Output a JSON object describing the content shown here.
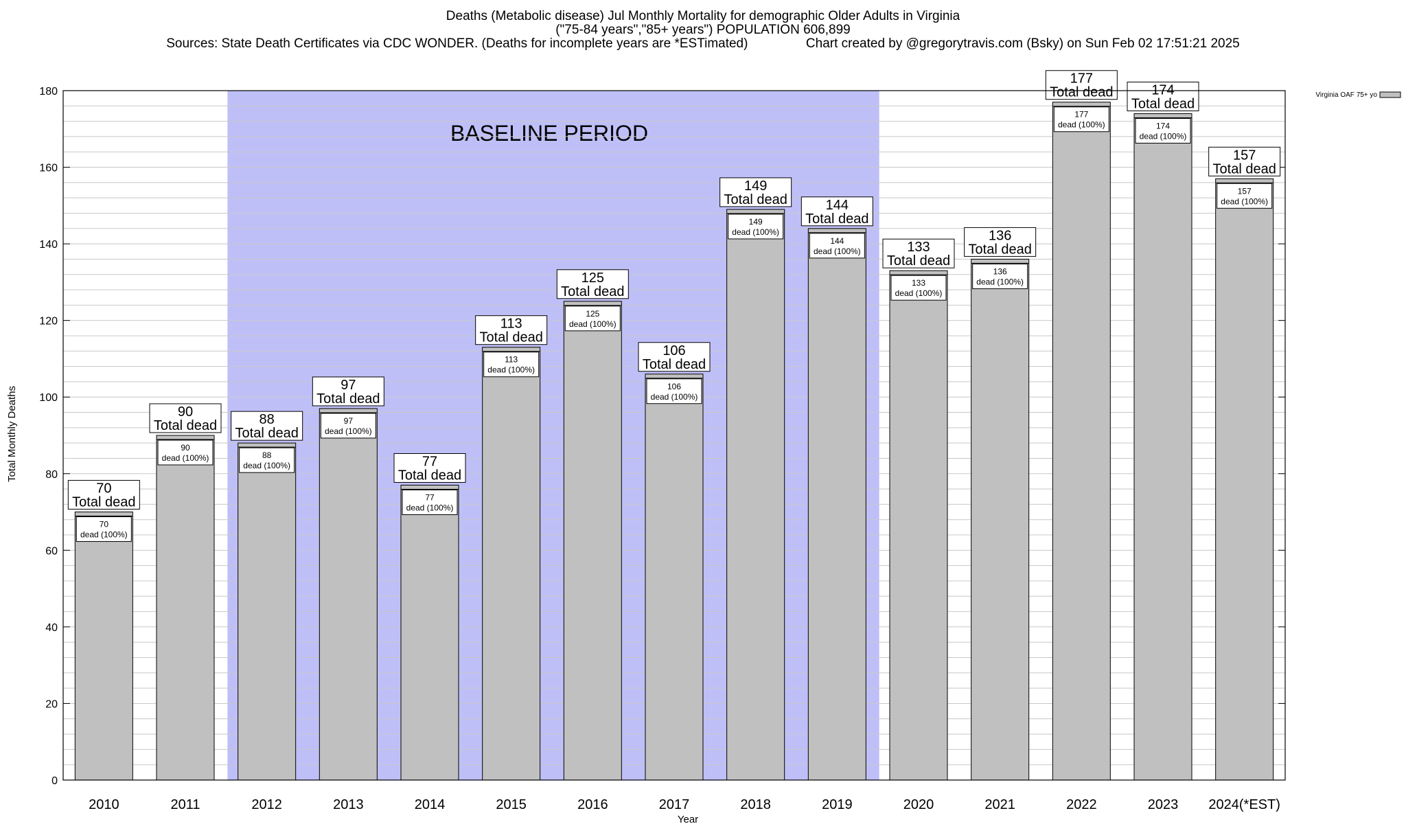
{
  "chart_data": {
    "type": "bar",
    "title_lines": [
      "Deaths (Metabolic disease) Jul Monthly Mortality for demographic Older Adults in Virginia",
      "(\"75-84 years\",\"85+ years\") POPULATION 606,899",
      "Sources: State Death Certificates via CDC WONDER. (Deaths for incomplete years are *ESTimated)                Chart created by @gregorytravis.com (Bsky) on Sun Feb 02 17:51:21 2025"
    ],
    "categories": [
      "2010",
      "2011",
      "2012",
      "2013",
      "2014",
      "2015",
      "2016",
      "2017",
      "2018",
      "2019",
      "2020",
      "2021",
      "2022",
      "2023",
      "2024(*EST)"
    ],
    "values": [
      70,
      90,
      88,
      97,
      77,
      113,
      125,
      106,
      149,
      144,
      133,
      136,
      177,
      174,
      157
    ],
    "total_label": "Total dead",
    "inner_label_suffix": "dead (100%)",
    "xlabel": "Year",
    "ylabel": "Total Monthly Deaths",
    "ylim": [
      0,
      180
    ],
    "yticks": [
      0,
      20,
      40,
      60,
      80,
      100,
      120,
      140,
      160,
      180
    ],
    "minor_step": 4,
    "legend": {
      "label": "Virginia OAF 75+ yo",
      "placement": "top-right"
    },
    "baseline": {
      "label": "BASELINE PERIOD",
      "start": "2012",
      "end": "2019"
    },
    "colors": {
      "bar": "#c0c0c0",
      "baseline": "#bfbff8",
      "grid": "#c8c8c8"
    }
  }
}
